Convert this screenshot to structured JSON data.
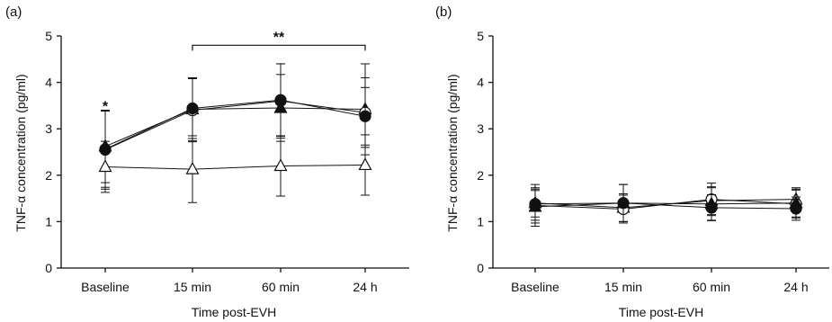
{
  "chart_data": [
    {
      "type": "line",
      "panel_label": "(a)",
      "xlabel": "Time post-EVH",
      "ylabel": "TNF-α concentration (pg/ml)",
      "categories": [
        "Baseline",
        "15 min",
        "60 min",
        "24 h"
      ],
      "ylim": [
        0,
        5
      ],
      "yticks": [
        0,
        1,
        2,
        3,
        4,
        5
      ],
      "grid": false,
      "series": [
        {
          "marker": "filled-triangle",
          "values": [
            2.62,
            3.42,
            3.45,
            3.42
          ],
          "err": [
            0.78,
            0.68,
            0.72,
            0.98
          ]
        },
        {
          "marker": "open-circle",
          "values": [
            2.55,
            3.4,
            3.6,
            3.35
          ],
          "err": [
            0.85,
            0.68,
            0.8,
            0.75
          ]
        },
        {
          "marker": "filled-circle",
          "values": [
            2.56,
            3.44,
            3.62,
            3.27
          ],
          "err": [
            0.82,
            0.65,
            0.78,
            0.62
          ]
        },
        {
          "marker": "open-triangle",
          "values": [
            2.18,
            2.13,
            2.2,
            2.22
          ],
          "err": [
            0.55,
            0.72,
            0.65,
            0.65
          ]
        }
      ],
      "annotations": [
        {
          "text": "*",
          "category": "Baseline",
          "y": 3.5
        },
        {
          "text": "**",
          "bracket_from": "15 min",
          "bracket_to": "24 h",
          "y": 4.8
        }
      ]
    },
    {
      "type": "line",
      "panel_label": "(b)",
      "xlabel": "Time post-EVH",
      "ylabel": "TNF-α concentration (pg/ml)",
      "categories": [
        "Baseline",
        "15 min",
        "60 min",
        "24 h"
      ],
      "ylim": [
        0,
        5
      ],
      "yticks": [
        0,
        1,
        2,
        3,
        4,
        5
      ],
      "grid": false,
      "series": [
        {
          "marker": "open-triangle",
          "values": [
            1.4,
            1.3,
            1.45,
            1.48
          ],
          "err": [
            0.3,
            0.3,
            0.3,
            0.25
          ]
        },
        {
          "marker": "open-circle",
          "values": [
            1.35,
            1.27,
            1.48,
            1.38
          ],
          "err": [
            0.45,
            0.3,
            0.35,
            0.3
          ]
        },
        {
          "marker": "filled-triangle",
          "values": [
            1.32,
            1.4,
            1.38,
            1.4
          ],
          "err": [
            0.35,
            0.4,
            0.35,
            0.3
          ]
        },
        {
          "marker": "filled-circle",
          "values": [
            1.38,
            1.4,
            1.3,
            1.28
          ],
          "err": [
            0.35,
            0.4,
            0.28,
            0.25
          ]
        }
      ],
      "annotations": []
    }
  ]
}
